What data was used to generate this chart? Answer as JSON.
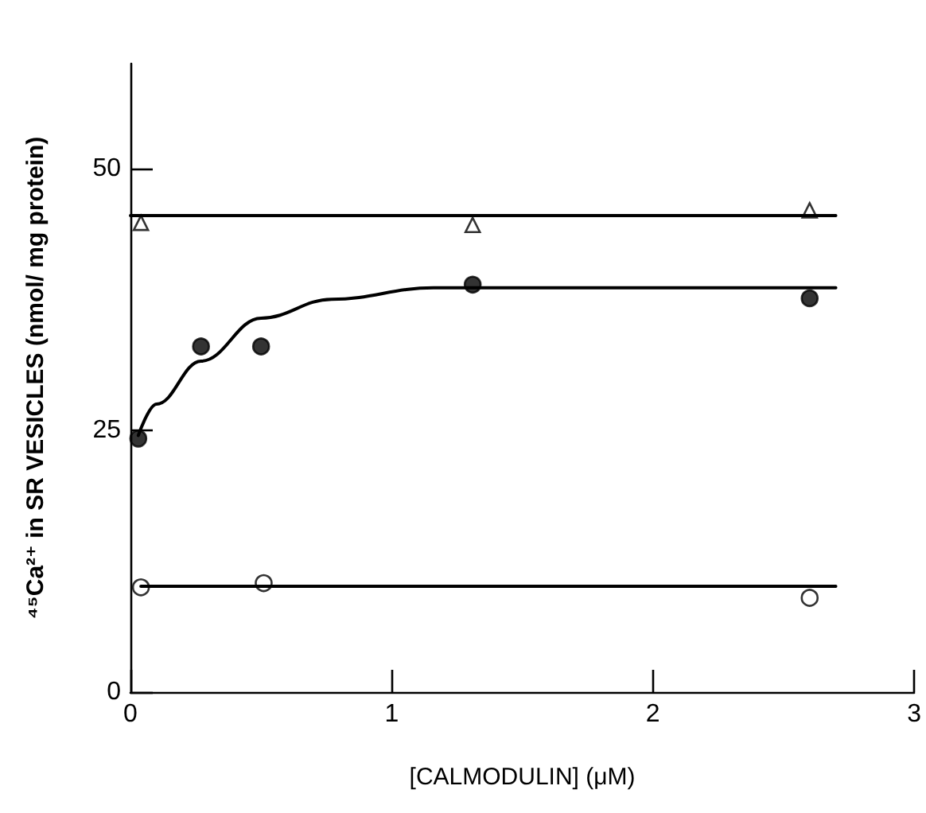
{
  "chart_data": {
    "type": "scatter",
    "xlabel": "[CALMODULIN] (μM)",
    "ylabel": "⁴⁵Ca²⁺ in SR VESICLES (nmol/ mg protein)",
    "xlim": [
      0,
      3
    ],
    "xticks": [
      0,
      1,
      2,
      3
    ],
    "ylim": [
      0,
      60
    ],
    "yticks": [
      0,
      25,
      50
    ],
    "grid": false,
    "series": [
      {
        "marker": "triangle",
        "color": "#ffffff",
        "x": [
          0.04,
          1.31,
          2.6
        ],
        "values": [
          44.8,
          44.6,
          46.0
        ]
      },
      {
        "marker": "circle",
        "color": "#000000",
        "x": [
          0.03,
          0.27,
          0.5,
          1.31,
          2.6
        ],
        "values": [
          24.2,
          33,
          33,
          38.9,
          37.6
        ]
      },
      {
        "marker": "circle",
        "color": "#ffffff",
        "x": [
          0.04,
          0.51,
          2.6
        ],
        "values": [
          10.0,
          10.4,
          9.0
        ]
      },
      {
        "type": "line",
        "marker": "none",
        "line_style": "solid",
        "color": "#000000",
        "x": [
          0,
          2.7
        ],
        "values": [
          45.5,
          45.5
        ]
      },
      {
        "type": "line",
        "marker": "none",
        "line_style": "solid",
        "color": "#000000",
        "x": [
          0.03,
          0.1,
          0.27,
          0.5,
          0.77,
          1.16,
          1.4,
          2.7
        ],
        "values": [
          24.5,
          27.5,
          31.6,
          35.7,
          37.5,
          38.6,
          38.6,
          38.6
        ]
      },
      {
        "type": "line",
        "marker": "none",
        "line_style": "solid",
        "color": "#000000",
        "x": [
          0.04,
          2.7
        ],
        "values": [
          10.1,
          10.1
        ]
      }
    ]
  }
}
